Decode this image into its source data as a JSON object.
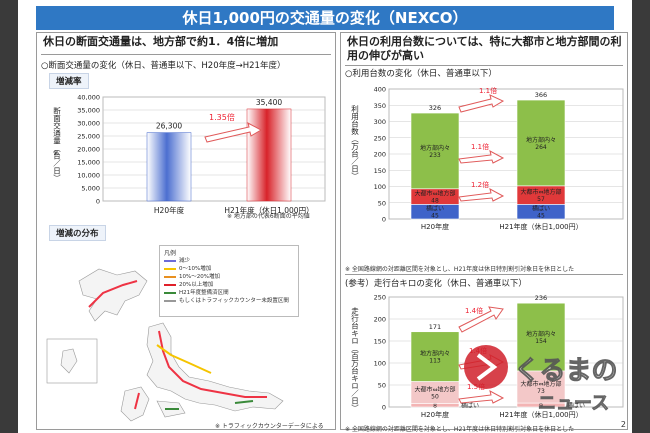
{
  "title": "休日1,000円の交通量の変化（NEXCO）",
  "page_number": "2",
  "left": {
    "headline": "休日の断面交通量は、地方部で約1．4倍に増加",
    "section1": {
      "heading": "○断面交通量の変化（休日、普通車以下、H20年度→H21年度）",
      "tag": "増減率",
      "footnote": "※ 地方部の代表6断面の平均値"
    },
    "section2": {
      "tag": "増減の分布",
      "legend_title": "凡例",
      "legend_items": [
        "減少",
        "0〜10%増加",
        "10%〜20%増加",
        "20%以上増加",
        "H21年度整備済区間",
        "もしくはトラフィックカウンター未設置区間"
      ],
      "footnote": "※ トラフィックカウンターデータによる"
    }
  },
  "right": {
    "headline": "休日の利用台数については、特に大都市と地方部間の利用の伸びが高い",
    "section1": {
      "heading": "○利用台数の変化（休日、普通車以下）",
      "footnote": "※ 全国路線網の対距離区間を対象とし、H21年度は休日特別割引対象日を休日とした"
    },
    "section2": {
      "heading": "(参考）走行台キロの変化（休日、普通車以下）",
      "footnote": "※ 全国路線網の対距離区間を対象とし、H21年度は休日特別割引対象日を休日とした"
    }
  },
  "chart_data": [
    {
      "type": "bar",
      "categories": [
        "H20年度",
        "H21年度（休日1,000円）"
      ],
      "values": [
        26300,
        35400
      ],
      "value_labels": [
        "26,300",
        "35,400"
      ],
      "ylabel": "断面交通量（台／日）",
      "ylabel_note": "※",
      "ylim": [
        0,
        40000
      ],
      "yticks": [
        "0",
        "5,000",
        "10,000",
        "15,000",
        "20,000",
        "25,000",
        "30,000",
        "35,000",
        "40,000"
      ],
      "annotations": [
        {
          "text": "1.35倍"
        }
      ],
      "colors": [
        "#3f63c9",
        "#d8232a"
      ]
    },
    {
      "type": "bar",
      "stacked": true,
      "categories": [
        "H20年度",
        "H21年度（休日1,000円）"
      ],
      "ylabel": "利用台数（万台／日）",
      "ylim": [
        0,
        400
      ],
      "yticks": [
        "0",
        "50",
        "100",
        "150",
        "200",
        "250",
        "300",
        "350",
        "400"
      ],
      "series": [
        {
          "name": "横ばい",
          "values": [
            45,
            45
          ],
          "color": "#3f63c9"
        },
        {
          "name": "大都市⇔地方部",
          "values": [
            48,
            57
          ],
          "color": "#e0393a"
        },
        {
          "name": "地方部内々",
          "values": [
            233,
            264
          ],
          "color": "#8dbf4a"
        }
      ],
      "totals": [
        326,
        366
      ],
      "annotations": [
        {
          "text": "1.1倍"
        },
        {
          "text": "1.1倍"
        },
        {
          "text": "1.2倍"
        }
      ]
    },
    {
      "type": "bar",
      "stacked": true,
      "categories": [
        "H20年度",
        "H21年度（休日1,000円）"
      ],
      "ylabel": "走行台キロ（百万台キロ／日）",
      "ylim": [
        0,
        250
      ],
      "yticks": [
        "0",
        "50",
        "100",
        "150",
        "200",
        "250"
      ],
      "series": [
        {
          "name": "横ばい",
          "values": [
            8,
            9
          ],
          "color": "#f3b4b4"
        },
        {
          "name": "大都市⇔地方部",
          "values": [
            50,
            73
          ],
          "color": "#f3c8c8"
        },
        {
          "name": "地方部内々",
          "values": [
            113,
            154
          ],
          "color": "#8dbf4a"
        }
      ],
      "totals": [
        171,
        236
      ],
      "annotations": [
        {
          "text": "1.4倍"
        },
        {
          "text": "1.4倍"
        },
        {
          "text": "1.5倍"
        }
      ]
    }
  ],
  "watermark": {
    "text1": "くるまの",
    "text2": "ニュース"
  }
}
